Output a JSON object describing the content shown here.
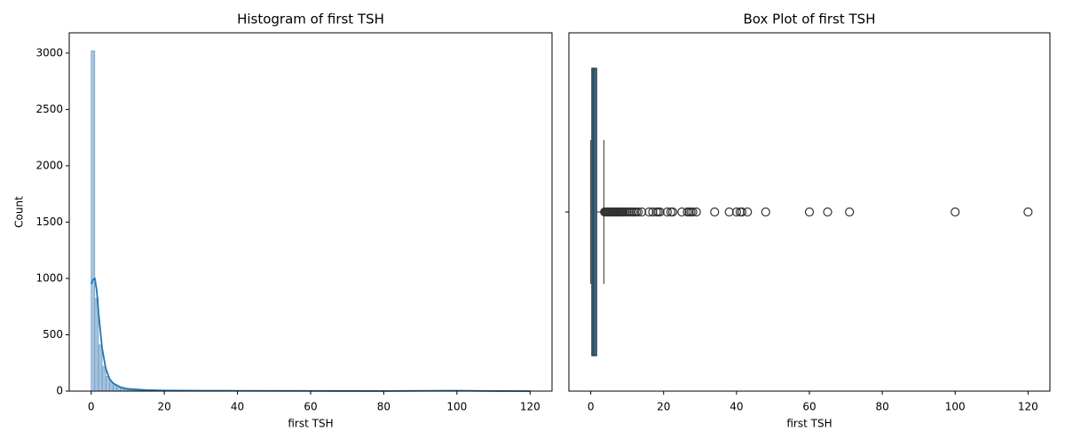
{
  "chart_data": [
    {
      "type": "histogram",
      "title": "Histogram of first TSH",
      "xlabel": "first TSH",
      "ylabel": "Count",
      "color": "#a5c3dd",
      "edgecolor": "#4a86b8",
      "bins": [
        0,
        1,
        2,
        3,
        4,
        5,
        6,
        7,
        8,
        9,
        10,
        11,
        12,
        13,
        14,
        15,
        16,
        17,
        18,
        19,
        20,
        21,
        22,
        23,
        24,
        25,
        26,
        27,
        28,
        29,
        30,
        31,
        32,
        33,
        34,
        35,
        36,
        37,
        38,
        39,
        40,
        41,
        42,
        43,
        44,
        45,
        46,
        47,
        48,
        49,
        50,
        51,
        52,
        53,
        54,
        55,
        56,
        57,
        58,
        59,
        60,
        61,
        62,
        63,
        64,
        65,
        66,
        67,
        68,
        69,
        70,
        71,
        72,
        73,
        74,
        75,
        76,
        77,
        78,
        79,
        80,
        81,
        82,
        83,
        84,
        85,
        86,
        87,
        88,
        89,
        90,
        91,
        92,
        93,
        94,
        95,
        96,
        97,
        98,
        99,
        100,
        101,
        102,
        103,
        104,
        105,
        106,
        107,
        108,
        109,
        110,
        111,
        112,
        113,
        114,
        115,
        116,
        117,
        118,
        119,
        120
      ],
      "counts": [
        3020,
        820,
        410,
        220,
        130,
        80,
        50,
        35,
        22,
        16,
        12,
        10,
        8,
        6,
        5,
        4,
        3,
        3,
        2,
        3,
        2,
        2,
        3,
        1,
        1,
        2,
        2,
        3,
        2,
        1,
        0,
        0,
        0,
        0,
        1,
        0,
        0,
        0,
        1,
        0,
        2,
        2,
        0,
        1,
        0,
        0,
        0,
        0,
        1,
        0,
        0,
        0,
        0,
        0,
        0,
        0,
        0,
        0,
        0,
        0,
        2,
        0,
        0,
        0,
        0,
        1,
        0,
        0,
        0,
        0,
        0,
        1,
        0,
        0,
        0,
        0,
        0,
        0,
        0,
        0,
        0,
        0,
        0,
        0,
        0,
        0,
        0,
        0,
        0,
        0,
        0,
        0,
        0,
        0,
        0,
        0,
        0,
        0,
        0,
        0,
        3,
        0,
        0,
        0,
        0,
        0,
        0,
        0,
        0,
        0,
        0,
        0,
        0,
        0,
        0,
        0,
        0,
        0,
        0,
        1
      ],
      "kde": {
        "color": "#1f77b4",
        "x": [
          0,
          0.5,
          1,
          1.5,
          2,
          3,
          4,
          5,
          6,
          8,
          10,
          15,
          20,
          30,
          40,
          60,
          80,
          100,
          110,
          120
        ],
        "values": [
          950,
          990,
          1000,
          900,
          700,
          380,
          200,
          110,
          70,
          35,
          20,
          10,
          6,
          4,
          3,
          2,
          1,
          4,
          1,
          0
        ]
      },
      "xlim": [
        -6,
        126
      ],
      "xticks": [
        0,
        20,
        40,
        60,
        80,
        100,
        120
      ],
      "ylim": [
        0,
        3180
      ],
      "yticks": [
        0,
        500,
        1000,
        1500,
        2000,
        2500,
        3000
      ]
    },
    {
      "type": "box",
      "title": "Box Plot of first TSH",
      "xlabel": "first TSH",
      "color": "#3274a1",
      "edgecolor": "#333333",
      "box": {
        "min": 0,
        "q1": 0.3,
        "median": 0.8,
        "q3": 1.6,
        "max": 3.6,
        "outliers": [
          3.8,
          4,
          4.25,
          4.5,
          4.75,
          5,
          5.25,
          5.5,
          5.75,
          6,
          6.25,
          6.5,
          6.75,
          7,
          7.25,
          7.5,
          7.75,
          8,
          8.25,
          8.5,
          8.75,
          9,
          9.5,
          10,
          10.5,
          11,
          11.5,
          12,
          12.5,
          13,
          14,
          16,
          17,
          18,
          18.5,
          19,
          21,
          22,
          22.5,
          25,
          26.5,
          27,
          27.5,
          28,
          29,
          34,
          38,
          40,
          41,
          41.5,
          43,
          48,
          60,
          65,
          71,
          100,
          120
        ]
      },
      "xlim": [
        -6,
        126
      ],
      "xticks": [
        0,
        20,
        40,
        60,
        80,
        100,
        120
      ]
    }
  ]
}
